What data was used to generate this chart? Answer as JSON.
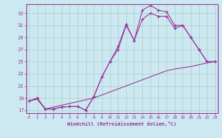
{
  "xlabel": "Windchill (Refroidissement éolien,°C)",
  "bg_color": "#cce8f0",
  "grid_color": "#aacccc",
  "line_color": "#993399",
  "xticks": [
    0,
    1,
    2,
    3,
    4,
    5,
    6,
    7,
    8,
    9,
    10,
    11,
    12,
    13,
    14,
    15,
    16,
    17,
    18,
    19,
    20,
    21,
    22,
    23
  ],
  "yticks": [
    17,
    19,
    21,
    23,
    25,
    27,
    29,
    31,
    33
  ],
  "xlim": [
    -0.3,
    23.3
  ],
  "ylim": [
    16.5,
    34.5
  ],
  "line1_x": [
    0,
    1,
    2,
    3,
    4,
    5,
    6,
    7,
    8,
    9,
    10,
    11,
    12,
    13,
    14,
    15,
    16,
    17,
    18,
    19,
    20,
    21,
    22,
    23
  ],
  "line1_y": [
    18.5,
    19.0,
    17.2,
    17.2,
    17.5,
    17.6,
    17.6,
    17.0,
    19.2,
    22.5,
    25.0,
    27.5,
    31.2,
    28.5,
    33.5,
    34.3,
    33.5,
    33.2,
    31.0,
    31.0,
    29.0,
    27.0,
    25.0,
    25.0
  ],
  "line2_x": [
    0,
    1,
    2,
    3,
    4,
    5,
    6,
    7,
    8,
    9,
    10,
    11,
    12,
    13,
    14,
    15,
    16,
    17,
    18,
    19,
    20,
    21,
    22,
    23
  ],
  "line2_y": [
    18.5,
    19.0,
    17.2,
    17.2,
    17.5,
    17.6,
    17.6,
    17.0,
    19.2,
    22.5,
    25.0,
    27.0,
    31.0,
    28.5,
    32.0,
    33.0,
    32.5,
    32.5,
    30.5,
    31.0,
    29.0,
    27.0,
    25.0,
    25.0
  ],
  "line3_x": [
    0,
    1,
    2,
    3,
    4,
    5,
    6,
    7,
    8,
    9,
    10,
    11,
    12,
    13,
    14,
    15,
    16,
    17,
    18,
    19,
    20,
    21,
    22,
    23
  ],
  "line3_y": [
    18.5,
    18.8,
    17.2,
    17.5,
    17.8,
    18.1,
    18.4,
    18.7,
    19.0,
    19.5,
    20.0,
    20.5,
    21.0,
    21.5,
    22.0,
    22.5,
    23.0,
    23.5,
    23.8,
    24.0,
    24.2,
    24.5,
    24.8,
    25.0
  ]
}
